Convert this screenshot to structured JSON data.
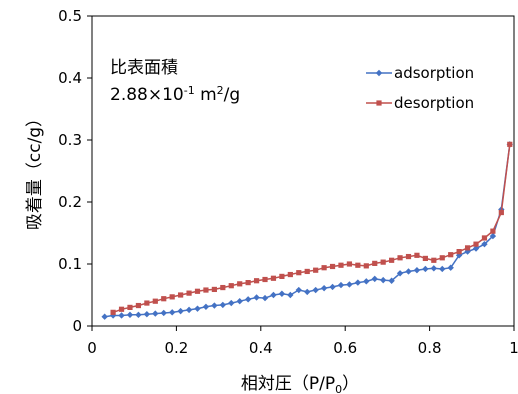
{
  "chart_data": {
    "type": "line",
    "xlabel": "相対圧",
    "xlabel_unit": "（P/P",
    "xlabel_unit_sub": "0",
    "xlabel_unit_close": "）",
    "ylabel": "吸着量（cc/g）",
    "annotation": {
      "line1": "比表面積",
      "line2_base": "2.88×10",
      "line2_exp": "-1",
      "line2_unit": " m",
      "line2_unit_exp": "2",
      "line2_unit_tail": "/g"
    },
    "xlim": [
      0,
      1
    ],
    "ylim": [
      0,
      0.5
    ],
    "x_ticks": [
      "0",
      "0.2",
      "0.4",
      "0.6",
      "0.8",
      "1"
    ],
    "y_ticks": [
      "0",
      "0.1",
      "0.2",
      "0.3",
      "0.4",
      "0.5"
    ],
    "legend_position": "top-right",
    "series": [
      {
        "name": "adsorption",
        "color": "#4472C4",
        "marker": "diamond",
        "x": [
          0.03,
          0.05,
          0.07,
          0.09,
          0.11,
          0.13,
          0.15,
          0.17,
          0.19,
          0.21,
          0.23,
          0.25,
          0.27,
          0.29,
          0.31,
          0.33,
          0.35,
          0.37,
          0.39,
          0.41,
          0.43,
          0.45,
          0.47,
          0.49,
          0.51,
          0.53,
          0.55,
          0.57,
          0.59,
          0.61,
          0.63,
          0.65,
          0.67,
          0.69,
          0.71,
          0.73,
          0.75,
          0.77,
          0.79,
          0.81,
          0.83,
          0.85,
          0.87,
          0.89,
          0.91,
          0.93,
          0.95,
          0.97,
          0.99
        ],
        "y": [
          0.015,
          0.017,
          0.017,
          0.018,
          0.018,
          0.019,
          0.02,
          0.021,
          0.022,
          0.024,
          0.026,
          0.028,
          0.031,
          0.033,
          0.034,
          0.037,
          0.04,
          0.043,
          0.046,
          0.045,
          0.05,
          0.052,
          0.05,
          0.058,
          0.055,
          0.058,
          0.061,
          0.063,
          0.066,
          0.067,
          0.07,
          0.072,
          0.076,
          0.074,
          0.073,
          0.085,
          0.088,
          0.09,
          0.092,
          0.093,
          0.092,
          0.094,
          0.114,
          0.12,
          0.125,
          0.132,
          0.145,
          0.188,
          0.293
        ]
      },
      {
        "name": "desorption",
        "color": "#C0504D",
        "marker": "square",
        "x": [
          0.05,
          0.07,
          0.09,
          0.11,
          0.13,
          0.15,
          0.17,
          0.19,
          0.21,
          0.23,
          0.25,
          0.27,
          0.29,
          0.31,
          0.33,
          0.35,
          0.37,
          0.39,
          0.41,
          0.43,
          0.45,
          0.47,
          0.49,
          0.51,
          0.53,
          0.55,
          0.57,
          0.59,
          0.61,
          0.63,
          0.65,
          0.67,
          0.69,
          0.71,
          0.73,
          0.75,
          0.77,
          0.79,
          0.81,
          0.83,
          0.85,
          0.87,
          0.89,
          0.91,
          0.93,
          0.95,
          0.97,
          0.99
        ],
        "y": [
          0.022,
          0.027,
          0.03,
          0.033,
          0.037,
          0.04,
          0.044,
          0.047,
          0.05,
          0.053,
          0.056,
          0.058,
          0.059,
          0.062,
          0.065,
          0.068,
          0.07,
          0.073,
          0.075,
          0.077,
          0.08,
          0.083,
          0.086,
          0.088,
          0.09,
          0.094,
          0.096,
          0.098,
          0.1,
          0.098,
          0.097,
          0.101,
          0.103,
          0.106,
          0.11,
          0.112,
          0.114,
          0.109,
          0.106,
          0.11,
          0.115,
          0.12,
          0.126,
          0.132,
          0.142,
          0.153,
          0.183,
          0.293
        ]
      }
    ]
  }
}
